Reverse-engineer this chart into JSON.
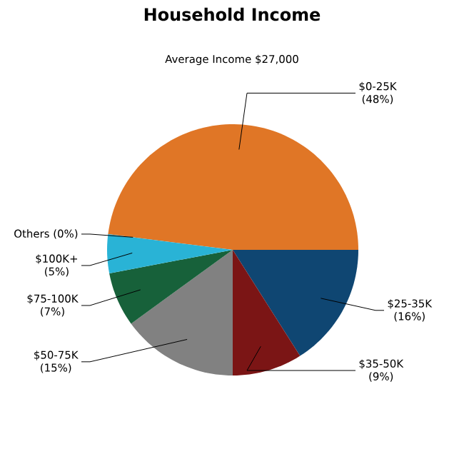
{
  "chart_data": {
    "type": "pie",
    "title": "Household Income",
    "subtitle": "Average Income  $27,000",
    "categories": [
      "$0-25K",
      "$25-35K",
      "$35-50K",
      "$50-75K",
      "$75-100K",
      "$100K+",
      "Others"
    ],
    "values": [
      48,
      16,
      9,
      15,
      7,
      5,
      0
    ],
    "value_labels": [
      "(48%)",
      "(16%)",
      "(9%)",
      "(15%)",
      "(7%)",
      "(5%)",
      "(0%)"
    ],
    "colors": [
      "#e07626",
      "#0f4672",
      "#7b1515",
      "#818181",
      "#17613a",
      "#29b3d6",
      null
    ]
  }
}
